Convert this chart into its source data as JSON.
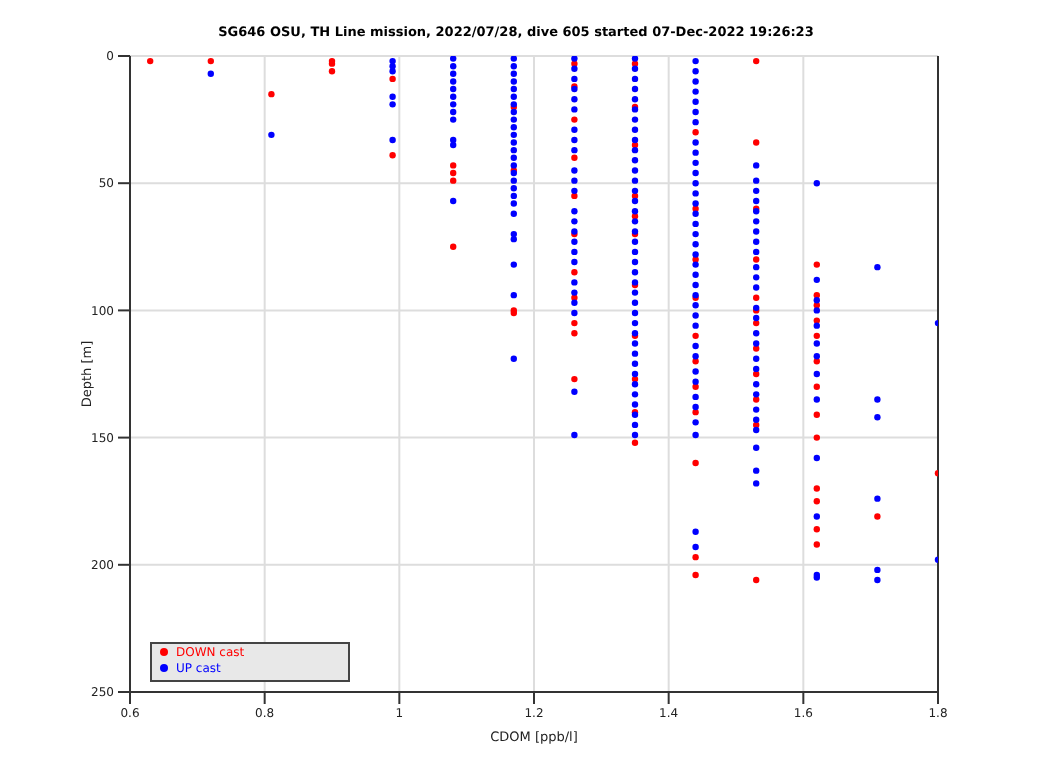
{
  "chart_data": {
    "type": "scatter",
    "title": "SG646 OSU, TH Line mission, 2022/07/28, dive 605 started 07-Dec-2022 19:26:23",
    "xlabel": "CDOM [ppb/l]",
    "ylabel": "Depth [m]",
    "xlim": [
      0.6,
      1.8
    ],
    "xticks": [
      0.6,
      0.8,
      1,
      1.2,
      1.4,
      1.6,
      1.8
    ],
    "ylim": [
      250,
      0
    ],
    "yticks": [
      0,
      50,
      100,
      150,
      200,
      250
    ],
    "grid": true,
    "legend": "bottom left",
    "marker": "circle",
    "series": [
      {
        "name": "DOWN cast",
        "color": "#ff0000",
        "x": [
          0.63,
          0.72,
          0.81,
          0.9,
          0.9,
          0.9,
          0.99,
          0.99,
          1.08,
          1.08,
          1.08,
          1.08,
          1.17,
          1.17,
          1.17,
          1.17,
          1.26,
          1.26,
          1.26,
          1.26,
          1.26,
          1.26,
          1.26,
          1.26,
          1.26,
          1.26,
          1.26,
          1.35,
          1.35,
          1.35,
          1.35,
          1.35,
          1.35,
          1.35,
          1.35,
          1.35,
          1.35,
          1.35,
          1.44,
          1.44,
          1.44,
          1.44,
          1.44,
          1.44,
          1.44,
          1.44,
          1.44,
          1.44,
          1.44,
          1.53,
          1.53,
          1.53,
          1.53,
          1.53,
          1.53,
          1.53,
          1.53,
          1.53,
          1.53,
          1.53,
          1.53,
          1.62,
          1.62,
          1.62,
          1.62,
          1.62,
          1.62,
          1.62,
          1.62,
          1.62,
          1.62,
          1.62,
          1.62,
          1.62,
          1.71,
          1.8
        ],
        "values": [
          2,
          2,
          15,
          2,
          3,
          6,
          9,
          39,
          43,
          46,
          49,
          75,
          20,
          45,
          100,
          101,
          3,
          12,
          25,
          40,
          55,
          70,
          85,
          95,
          105,
          109,
          127,
          3,
          20,
          35,
          55,
          63,
          70,
          90,
          110,
          127,
          140,
          152,
          30,
          60,
          80,
          95,
          110,
          120,
          130,
          140,
          160,
          197,
          204,
          2,
          34,
          60,
          80,
          95,
          100,
          105,
          115,
          125,
          135,
          145,
          206,
          82,
          94,
          98,
          104,
          110,
          120,
          130,
          141,
          150,
          170,
          175,
          186,
          192,
          181,
          164
        ]
      },
      {
        "name": "UP cast",
        "color": "#0000ff",
        "x": [
          0.72,
          0.81,
          0.99,
          0.99,
          0.99,
          0.99,
          0.99,
          0.99,
          1.08,
          1.08,
          1.08,
          1.08,
          1.08,
          1.08,
          1.08,
          1.08,
          1.08,
          1.08,
          1.08,
          1.08,
          1.17,
          1.17,
          1.17,
          1.17,
          1.17,
          1.17,
          1.17,
          1.17,
          1.17,
          1.17,
          1.17,
          1.17,
          1.17,
          1.17,
          1.17,
          1.17,
          1.17,
          1.17,
          1.17,
          1.17,
          1.17,
          1.17,
          1.17,
          1.17,
          1.17,
          1.17,
          1.26,
          1.26,
          1.26,
          1.26,
          1.26,
          1.26,
          1.26,
          1.26,
          1.26,
          1.26,
          1.26,
          1.26,
          1.26,
          1.26,
          1.26,
          1.26,
          1.26,
          1.26,
          1.26,
          1.26,
          1.26,
          1.26,
          1.26,
          1.26,
          1.35,
          1.35,
          1.35,
          1.35,
          1.35,
          1.35,
          1.35,
          1.35,
          1.35,
          1.35,
          1.35,
          1.35,
          1.35,
          1.35,
          1.35,
          1.35,
          1.35,
          1.35,
          1.35,
          1.35,
          1.35,
          1.35,
          1.35,
          1.35,
          1.35,
          1.35,
          1.35,
          1.35,
          1.35,
          1.35,
          1.35,
          1.35,
          1.35,
          1.35,
          1.35,
          1.35,
          1.35,
          1.35,
          1.44,
          1.44,
          1.44,
          1.44,
          1.44,
          1.44,
          1.44,
          1.44,
          1.44,
          1.44,
          1.44,
          1.44,
          1.44,
          1.44,
          1.44,
          1.44,
          1.44,
          1.44,
          1.44,
          1.44,
          1.44,
          1.44,
          1.44,
          1.44,
          1.44,
          1.44,
          1.44,
          1.44,
          1.44,
          1.44,
          1.44,
          1.44,
          1.44,
          1.44,
          1.44,
          1.44,
          1.53,
          1.53,
          1.53,
          1.53,
          1.53,
          1.53,
          1.53,
          1.53,
          1.53,
          1.53,
          1.53,
          1.53,
          1.53,
          1.53,
          1.53,
          1.53,
          1.53,
          1.53,
          1.53,
          1.53,
          1.53,
          1.53,
          1.53,
          1.53,
          1.53,
          1.53,
          1.62,
          1.62,
          1.62,
          1.62,
          1.62,
          1.62,
          1.62,
          1.62,
          1.62,
          1.62,
          1.62,
          1.62,
          1.62,
          1.71,
          1.71,
          1.71,
          1.71,
          1.71,
          1.71,
          1.8,
          1.8
        ],
        "values": [
          7,
          31,
          2,
          4,
          6,
          16,
          19,
          33,
          1,
          4,
          7,
          10,
          13,
          16,
          19,
          22,
          25,
          33,
          35,
          57,
          1,
          4,
          7,
          10,
          13,
          16,
          19,
          22,
          25,
          28,
          31,
          34,
          37,
          40,
          43,
          46,
          49,
          52,
          55,
          58,
          62,
          70,
          72,
          82,
          94,
          119,
          1,
          5,
          9,
          13,
          17,
          21,
          29,
          33,
          37,
          45,
          49,
          53,
          61,
          65,
          69,
          73,
          77,
          81,
          89,
          93,
          97,
          101,
          132,
          149,
          1,
          5,
          9,
          13,
          17,
          21,
          25,
          29,
          33,
          37,
          41,
          45,
          49,
          53,
          57,
          61,
          65,
          69,
          73,
          77,
          81,
          85,
          89,
          93,
          97,
          101,
          105,
          109,
          113,
          117,
          121,
          125,
          129,
          133,
          137,
          141,
          145,
          149,
          2,
          6,
          10,
          14,
          18,
          22,
          26,
          34,
          38,
          42,
          46,
          50,
          54,
          58,
          62,
          66,
          70,
          74,
          78,
          82,
          86,
          90,
          94,
          98,
          102,
          106,
          114,
          118,
          124,
          128,
          134,
          138,
          144,
          149,
          187,
          193,
          43,
          49,
          53,
          57,
          61,
          65,
          69,
          73,
          77,
          83,
          87,
          91,
          99,
          103,
          109,
          113,
          119,
          123,
          129,
          133,
          139,
          143,
          147,
          154,
          163,
          168,
          50,
          88,
          96,
          100,
          106,
          113,
          118,
          125,
          135,
          158,
          181,
          204,
          205,
          83,
          135,
          142,
          174,
          202,
          206,
          105,
          198
        ]
      }
    ]
  }
}
